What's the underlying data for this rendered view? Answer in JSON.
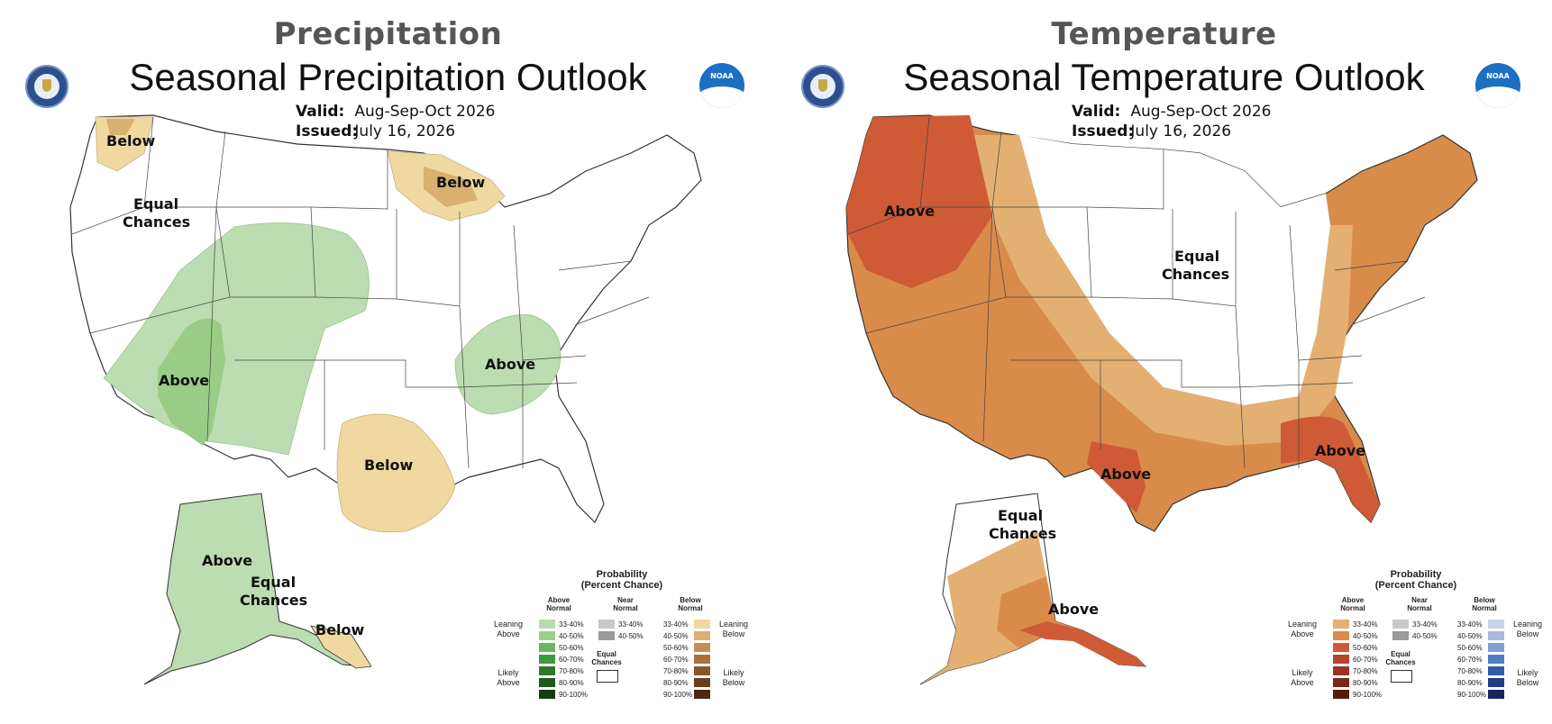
{
  "panels": [
    {
      "header": "Precipitation",
      "title": "Seasonal Precipitation Outlook",
      "valid_label": "Valid:",
      "valid_value": "Aug-Sep-Oct 2026",
      "issued_label": "Issued:",
      "issued_value": "July 16, 2026",
      "region_labels": [
        "Below",
        "Equal\nChances",
        "Below",
        "Above",
        "Above",
        "Below",
        "Above",
        "Equal\nChances",
        "Below"
      ],
      "legend": {
        "title": "Probability\n(Percent Chance)",
        "col_above": "Above\nNormal",
        "col_near": "Near\nNormal",
        "col_below": "Below\nNormal",
        "leaning_above": "Leaning\nAbove",
        "likely_above": "Likely\nAbove",
        "leaning_below": "Leaning\nBelow",
        "likely_below": "Likely\nBelow",
        "equal_chances": "Equal\nChances",
        "ranges": [
          "33-40%",
          "40-50%",
          "50-60%",
          "60-70%",
          "70-80%",
          "80-90%",
          "90-100%"
        ],
        "near_ranges": [
          "33-40%",
          "40-50%"
        ],
        "above_colors": [
          "#b9dbb0",
          "#9cce8e",
          "#6db561",
          "#3f9a3b",
          "#2b7a28",
          "#1f5a1c",
          "#153d13"
        ],
        "below_colors": [
          "#f0d9a0",
          "#d9b070",
          "#c48f52",
          "#a8703c",
          "#8a552b",
          "#6a3d1e",
          "#4a2813"
        ]
      }
    },
    {
      "header": "Temperature",
      "title": "Seasonal Temperature Outlook",
      "valid_label": "Valid:",
      "valid_value": "Aug-Sep-Oct 2026",
      "issued_label": "Issued:",
      "issued_value": "July 16, 2026",
      "region_labels": [
        "Above",
        "Equal\nChances",
        "Above",
        "Above",
        "Equal\nChances",
        "Above"
      ],
      "legend": {
        "title": "Probability\n(Percent Chance)",
        "col_above": "Above\nNormal",
        "col_near": "Near\nNormal",
        "col_below": "Below\nNormal",
        "leaning_above": "Leaning\nAbove",
        "likely_above": "Likely\nAbove",
        "leaning_below": "Leaning\nBelow",
        "likely_below": "Likely\nBelow",
        "equal_chances": "Equal\nChances",
        "ranges": [
          "33-40%",
          "40-50%",
          "50-60%",
          "60-70%",
          "70-80%",
          "80-90%",
          "90-100%"
        ],
        "near_ranges": [
          "33-40%",
          "40-50%"
        ],
        "above_colors": [
          "#e3b071",
          "#d98b4a",
          "#cf5a36",
          "#b8432a",
          "#993420",
          "#7a2716",
          "#5a1a0e"
        ],
        "below_colors": [
          "#c9d3ea",
          "#a8badf",
          "#7fa0d3",
          "#4f7fc2",
          "#2d5ea9",
          "#1f3e86",
          "#17255e"
        ]
      }
    }
  ],
  "colors": {
    "precip_leaning_above": "#bcdcb2",
    "precip_above_40": "#99cc86",
    "precip_leaning_below": "#f0d9a0",
    "precip_below_40": "#d9b070",
    "temp_leaning_above": "#e3b071",
    "temp_above_40": "#d98b4a",
    "temp_above_50": "#cf5a36",
    "state_border": "#444444"
  },
  "icons": [
    "dept-of-commerce-seal-icon",
    "noaa-logo-icon"
  ]
}
